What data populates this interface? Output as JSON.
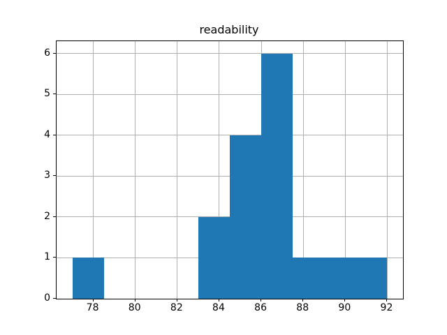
{
  "title": "readability",
  "colors": {
    "bar": "#1f77b4",
    "grid": "#b0b0b0",
    "spine": "#000000",
    "text": "#000000",
    "background": "#ffffff"
  },
  "chart_data": {
    "type": "bar",
    "subtype": "histogram",
    "title": "readability",
    "xlabel": "",
    "ylabel": "",
    "bin_edges": [
      77,
      78.5,
      80,
      81.5,
      83,
      84.5,
      86,
      87.5,
      89,
      90.5,
      92
    ],
    "counts": [
      1,
      0,
      0,
      0,
      2,
      4,
      6,
      1,
      1,
      1
    ],
    "xticks": [
      78,
      80,
      82,
      84,
      86,
      88,
      90,
      92
    ],
    "yticks": [
      0,
      1,
      2,
      3,
      4,
      5,
      6
    ],
    "xlim": [
      76.25,
      92.75
    ],
    "ylim": [
      0,
      6.3
    ],
    "grid": true,
    "legend": false,
    "bar_color": "#1f77b4",
    "grid_color": "#b0b0b0"
  }
}
